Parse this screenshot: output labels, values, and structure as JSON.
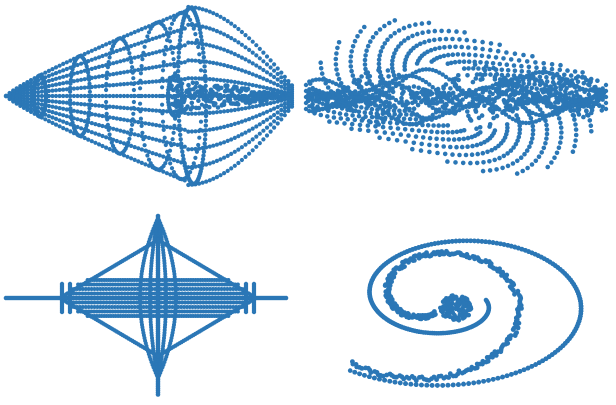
{
  "figure": {
    "dot_color": "#2b77b6",
    "background": "#ffffff",
    "panels": [
      {
        "id": "panel-top-left",
        "shape": "spindle-wireframe-side-view"
      },
      {
        "id": "panel-top-right",
        "shape": "ellipsoidal-point-cloud"
      },
      {
        "id": "panel-bottom-left",
        "shape": "spindle-wireframe-end-view"
      },
      {
        "id": "panel-bottom-right",
        "shape": "spiral-point-cloud"
      }
    ]
  }
}
